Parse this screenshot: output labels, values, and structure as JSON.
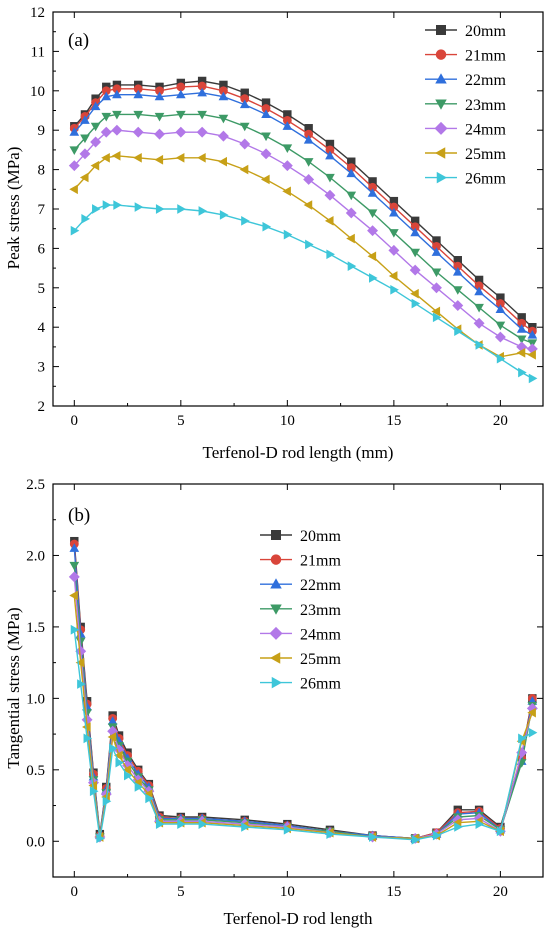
{
  "chart_data": [
    {
      "type": "line",
      "panel_label": "(a)",
      "xlabel": "Terfenol-D rod length (mm)",
      "ylabel": "Peak stress (MPa)",
      "xlim": [
        -1.0,
        22.0
      ],
      "ylim": [
        2,
        12
      ],
      "xticks": [
        0,
        5,
        10,
        15,
        20
      ],
      "yticks": [
        2,
        3,
        4,
        5,
        6,
        7,
        8,
        9,
        10,
        11,
        12
      ],
      "grid": false,
      "legend_position": "top-right",
      "markers": [
        "square",
        "circle",
        "triangle-up",
        "triangle-down",
        "diamond",
        "triangle-left",
        "triangle-right"
      ],
      "colors": [
        "#3a3a3a",
        "#d9453a",
        "#2f6fdc",
        "#3d9a66",
        "#b278e8",
        "#c7a017",
        "#3ec6d9"
      ],
      "x": [
        0.0,
        0.5,
        1.0,
        1.5,
        2.0,
        3.0,
        4.0,
        5.0,
        6.0,
        7.0,
        8.0,
        9.0,
        10.0,
        11.0,
        12.0,
        13.0,
        14.0,
        15.0,
        16.0,
        17.0,
        18.0,
        19.0,
        20.0,
        21.0,
        21.5
      ],
      "series": [
        {
          "name": "20mm",
          "values": [
            9.1,
            9.4,
            9.8,
            10.1,
            10.15,
            10.15,
            10.1,
            10.2,
            10.25,
            10.15,
            9.95,
            9.7,
            9.4,
            9.05,
            8.65,
            8.2,
            7.7,
            7.2,
            6.7,
            6.2,
            5.7,
            5.2,
            4.75,
            4.25,
            4.0
          ]
        },
        {
          "name": "21mm",
          "values": [
            9.05,
            9.35,
            9.7,
            10.0,
            10.05,
            10.05,
            10.0,
            10.1,
            10.12,
            10.0,
            9.8,
            9.55,
            9.25,
            8.9,
            8.5,
            8.05,
            7.55,
            7.05,
            6.55,
            6.05,
            5.55,
            5.05,
            4.6,
            4.1,
            3.9
          ]
        },
        {
          "name": "22mm",
          "values": [
            8.95,
            9.25,
            9.6,
            9.85,
            9.9,
            9.9,
            9.85,
            9.9,
            9.95,
            9.85,
            9.65,
            9.4,
            9.1,
            8.75,
            8.35,
            7.9,
            7.4,
            6.9,
            6.4,
            5.9,
            5.4,
            4.9,
            4.45,
            3.95,
            3.8
          ]
        },
        {
          "name": "23mm",
          "values": [
            8.5,
            8.8,
            9.1,
            9.35,
            9.4,
            9.4,
            9.35,
            9.4,
            9.4,
            9.3,
            9.1,
            8.85,
            8.55,
            8.2,
            7.8,
            7.35,
            6.9,
            6.4,
            5.9,
            5.4,
            4.95,
            4.5,
            4.05,
            3.7,
            3.6
          ]
        },
        {
          "name": "24mm",
          "values": [
            8.1,
            8.4,
            8.7,
            8.95,
            9.0,
            8.95,
            8.9,
            8.95,
            8.95,
            8.85,
            8.65,
            8.4,
            8.1,
            7.75,
            7.35,
            6.9,
            6.45,
            5.95,
            5.45,
            5.0,
            4.55,
            4.1,
            3.75,
            3.5,
            3.45
          ]
        },
        {
          "name": "25mm",
          "values": [
            7.5,
            7.8,
            8.1,
            8.3,
            8.35,
            8.3,
            8.25,
            8.3,
            8.3,
            8.2,
            8.0,
            7.75,
            7.45,
            7.1,
            6.7,
            6.25,
            5.8,
            5.3,
            4.85,
            4.4,
            3.95,
            3.55,
            3.25,
            3.35,
            3.3
          ]
        },
        {
          "name": "26mm",
          "values": [
            6.45,
            6.75,
            7.0,
            7.1,
            7.1,
            7.05,
            7.0,
            7.0,
            6.95,
            6.85,
            6.7,
            6.55,
            6.35,
            6.1,
            5.85,
            5.55,
            5.25,
            4.95,
            4.6,
            4.25,
            3.9,
            3.55,
            3.2,
            2.85,
            2.7
          ]
        }
      ]
    },
    {
      "type": "line",
      "panel_label": "(b)",
      "xlabel": "Terfenol-D rod length",
      "ylabel": "Tangential stress (MPa)",
      "xlim": [
        -1.0,
        22.0
      ],
      "ylim": [
        -0.25,
        2.5
      ],
      "xticks": [
        0,
        5,
        10,
        15,
        20
      ],
      "yticks": [
        0.0,
        0.5,
        1.0,
        1.5,
        2.0,
        2.5
      ],
      "ytick_labels": [
        "0.0",
        "0.5",
        "1.0",
        "1.5",
        "2.0",
        "2.5"
      ],
      "grid": false,
      "legend_position": "top-center",
      "markers": [
        "square",
        "circle",
        "triangle-up",
        "triangle-down",
        "diamond",
        "triangle-left",
        "triangle-right"
      ],
      "colors": [
        "#3a3a3a",
        "#d9453a",
        "#2f6fdc",
        "#3d9a66",
        "#b278e8",
        "#c7a017",
        "#3ec6d9"
      ],
      "x": [
        0.0,
        0.3,
        0.6,
        0.9,
        1.2,
        1.5,
        1.8,
        2.1,
        2.5,
        3.0,
        3.5,
        4.0,
        5.0,
        6.0,
        8.0,
        10.0,
        12.0,
        14.0,
        16.0,
        17.0,
        18.0,
        19.0,
        20.0,
        21.0,
        21.5
      ],
      "series": [
        {
          "name": "20mm",
          "values": [
            2.1,
            1.5,
            0.98,
            0.48,
            0.05,
            0.38,
            0.88,
            0.74,
            0.62,
            0.5,
            0.4,
            0.18,
            0.17,
            0.17,
            0.15,
            0.12,
            0.08,
            0.04,
            0.02,
            0.06,
            0.22,
            0.22,
            0.1,
            0.6,
            1.0
          ]
        },
        {
          "name": "21mm",
          "values": [
            2.08,
            1.48,
            0.96,
            0.47,
            0.04,
            0.37,
            0.86,
            0.72,
            0.6,
            0.49,
            0.39,
            0.17,
            0.16,
            0.16,
            0.14,
            0.11,
            0.07,
            0.04,
            0.02,
            0.06,
            0.2,
            0.21,
            0.09,
            0.58,
            1.0
          ]
        },
        {
          "name": "22mm",
          "values": [
            2.05,
            1.45,
            0.94,
            0.45,
            0.04,
            0.36,
            0.84,
            0.7,
            0.58,
            0.47,
            0.38,
            0.16,
            0.16,
            0.16,
            0.14,
            0.11,
            0.07,
            0.04,
            0.02,
            0.05,
            0.19,
            0.2,
            0.08,
            0.56,
            0.98
          ]
        },
        {
          "name": "23mm",
          "values": [
            1.93,
            1.4,
            0.9,
            0.43,
            0.03,
            0.34,
            0.8,
            0.67,
            0.56,
            0.45,
            0.36,
            0.15,
            0.15,
            0.15,
            0.13,
            0.1,
            0.07,
            0.03,
            0.02,
            0.05,
            0.17,
            0.18,
            0.08,
            0.55,
            0.95
          ]
        },
        {
          "name": "24mm",
          "values": [
            1.85,
            1.33,
            0.85,
            0.41,
            0.03,
            0.33,
            0.77,
            0.64,
            0.53,
            0.43,
            0.35,
            0.14,
            0.14,
            0.14,
            0.12,
            0.1,
            0.06,
            0.03,
            0.02,
            0.05,
            0.15,
            0.16,
            0.07,
            0.62,
            0.93
          ]
        },
        {
          "name": "25mm",
          "values": [
            1.72,
            1.25,
            0.8,
            0.39,
            0.03,
            0.31,
            0.73,
            0.6,
            0.5,
            0.41,
            0.33,
            0.13,
            0.13,
            0.13,
            0.11,
            0.09,
            0.06,
            0.03,
            0.02,
            0.04,
            0.13,
            0.14,
            0.07,
            0.7,
            0.9
          ]
        },
        {
          "name": "26mm",
          "values": [
            1.48,
            1.1,
            0.72,
            0.35,
            0.02,
            0.28,
            0.65,
            0.55,
            0.46,
            0.38,
            0.3,
            0.12,
            0.12,
            0.12,
            0.1,
            0.08,
            0.05,
            0.03,
            0.01,
            0.04,
            0.1,
            0.12,
            0.07,
            0.72,
            0.76
          ]
        }
      ]
    }
  ]
}
